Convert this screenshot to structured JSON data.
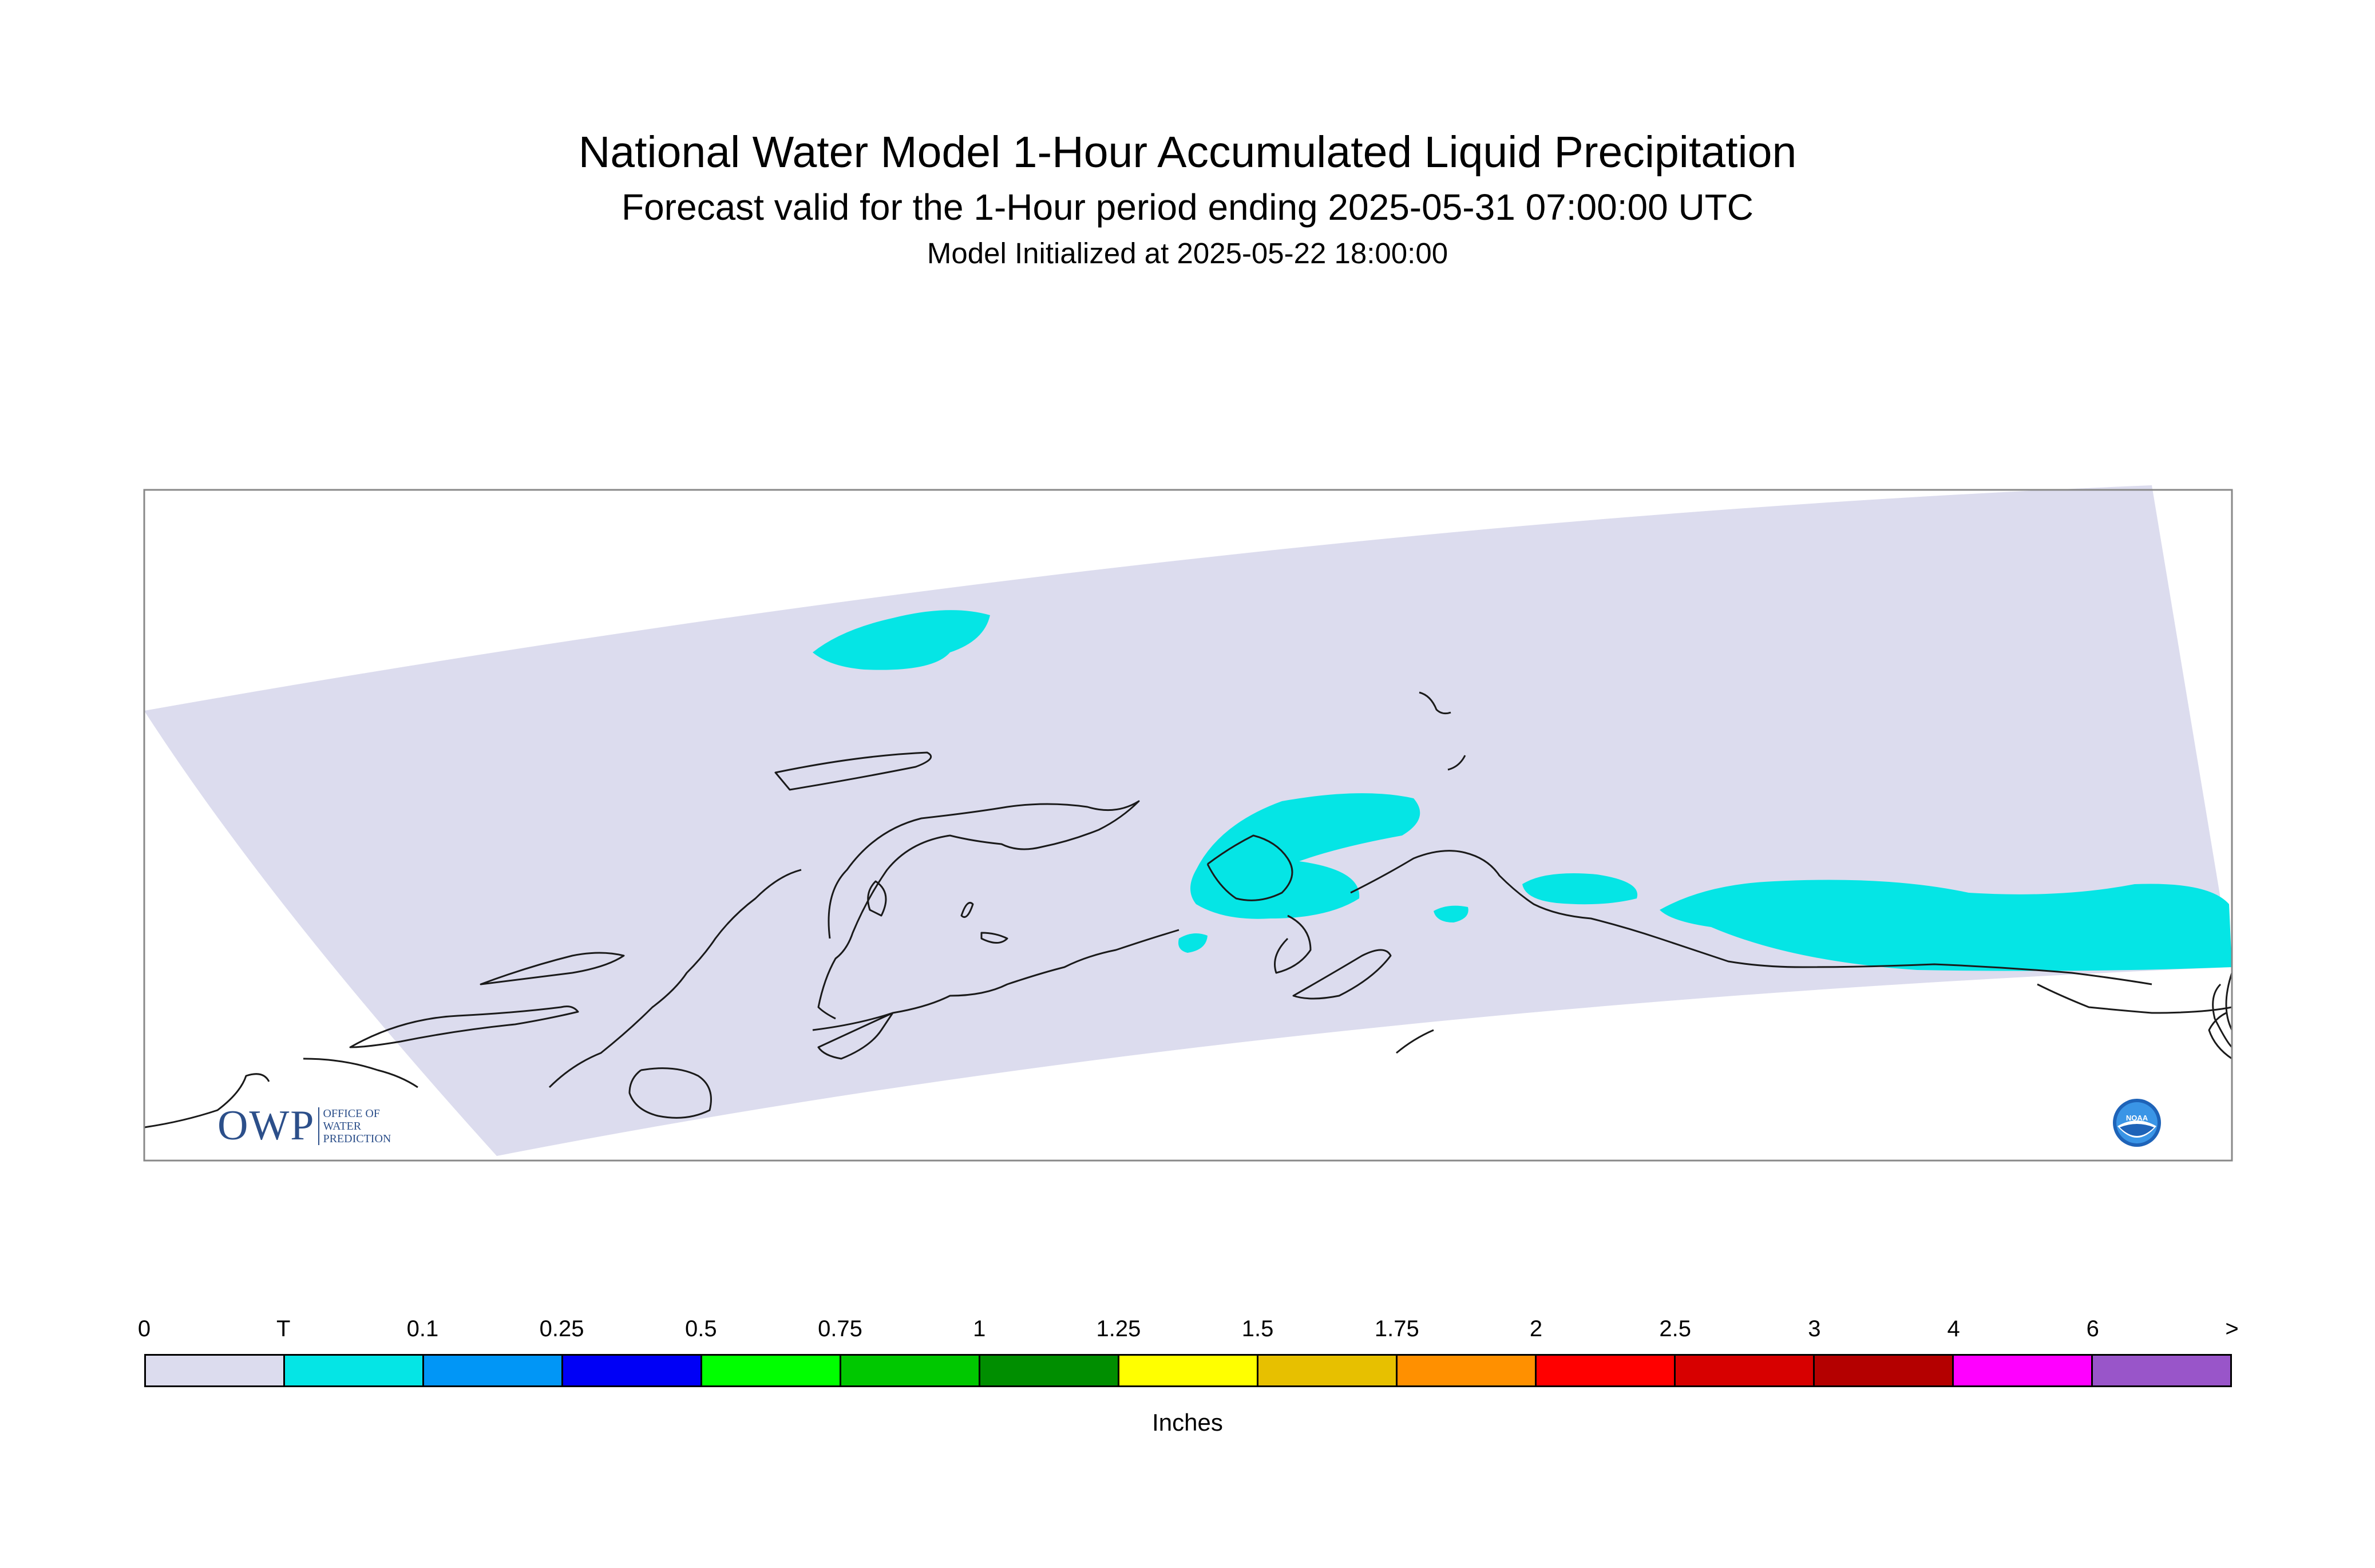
{
  "header": {
    "title": "National Water Model 1-Hour Accumulated Liquid Precipitation",
    "subtitle": "Forecast valid for the 1-Hour period ending 2025-05-31 07:00:00 UTC",
    "init": "Model Initialized at 2025-05-22 18:00:00"
  },
  "legend": {
    "labels": [
      "0",
      "T",
      "0.1",
      "0.25",
      "0.5",
      "0.75",
      "1",
      "1.25",
      "1.5",
      "1.75",
      "2",
      "2.5",
      "3",
      "4",
      "6",
      ">"
    ],
    "colors": [
      "#dcdcee",
      "#05e5e5",
      "#0196f6",
      "#0000f6",
      "#00ff00",
      "#00c800",
      "#008e00",
      "#ffff00",
      "#e7c000",
      "#ff9000",
      "#ff0000",
      "#d70000",
      "#b40000",
      "#ff00ff",
      "#9955c9"
    ],
    "units": "Inches"
  },
  "map": {
    "domain_color": "#dcdcee",
    "precip_color": "#05e5e5",
    "coast_color": "#1a1a1a"
  },
  "logos": {
    "owp_mark": "OWP",
    "owp_text": [
      "OFFICE OF",
      "WATER",
      "PREDICTION"
    ],
    "noaa_text": "NOAA"
  }
}
